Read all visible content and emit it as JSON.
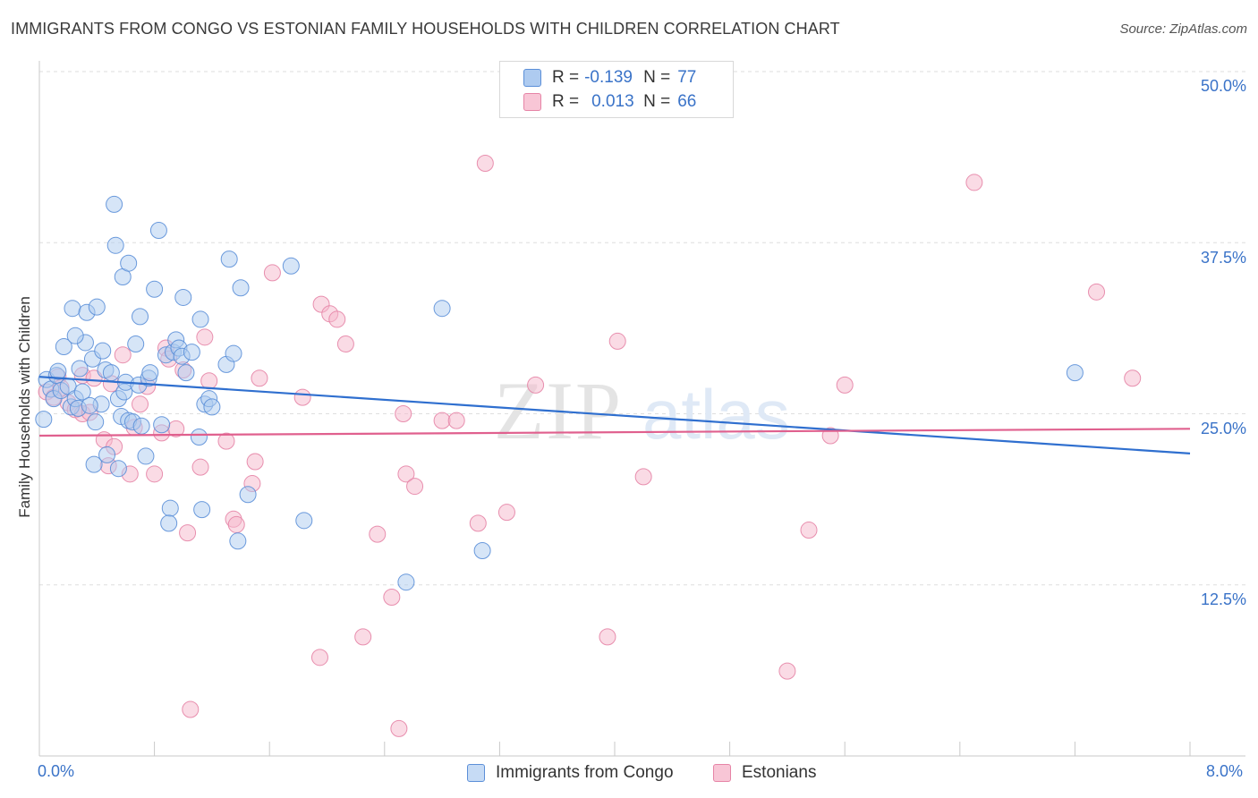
{
  "title": "IMMIGRANTS FROM CONGO VS ESTONIAN FAMILY HOUSEHOLDS WITH CHILDREN CORRELATION CHART",
  "source": "Source: ZipAtlas.com",
  "watermark": {
    "zip": "ZIP",
    "atlas": "atlas"
  },
  "colors": {
    "blue_fill": "#aecbf0",
    "blue_stroke": "#5b8fd8",
    "blue_line": "#2f6fcf",
    "pink_fill": "#f5b8cc",
    "pink_stroke": "#e684a6",
    "pink_line": "#e0608e",
    "accent_text": "#3a73c8",
    "grid": "#dedede"
  },
  "legend_top": {
    "rows": [
      {
        "label": "R =",
        "r": "-0.139",
        "n_label": "N =",
        "n": "77"
      },
      {
        "label": "R =",
        "r": "0.013",
        "n_label": "N =",
        "n": "66"
      }
    ]
  },
  "legend_bottom": [
    "Immigrants from Congo",
    "Estonians"
  ],
  "chart_data": {
    "type": "scatter",
    "title": "IMMIGRANTS FROM CONGO VS ESTONIAN FAMILY HOUSEHOLDS WITH CHILDREN CORRELATION CHART",
    "xlabel": "",
    "ylabel": "Family Households with Children",
    "xlim": [
      0,
      8
    ],
    "ylim": [
      0,
      50
    ],
    "x_tick_labels": [
      "0.0%",
      "8.0%"
    ],
    "y_ticks": [
      12.5,
      25.0,
      37.5,
      50.0
    ],
    "y_tick_labels": [
      "12.5%",
      "25.0%",
      "37.5%",
      "50.0%"
    ],
    "grid": true,
    "series": [
      {
        "name": "Immigrants from Congo",
        "r": -0.139,
        "n": 77,
        "trend": {
          "x": [
            0,
            8
          ],
          "y": [
            27.7,
            22.1
          ]
        },
        "points": [
          [
            0.03,
            24.6
          ],
          [
            0.05,
            27.5
          ],
          [
            0.08,
            26.8
          ],
          [
            0.1,
            26.1
          ],
          [
            0.12,
            27.8
          ],
          [
            0.13,
            28.1
          ],
          [
            0.15,
            26.7
          ],
          [
            0.17,
            29.9
          ],
          [
            0.2,
            27.0
          ],
          [
            0.22,
            25.5
          ],
          [
            0.23,
            32.7
          ],
          [
            0.25,
            26.1
          ],
          [
            0.27,
            25.4
          ],
          [
            0.28,
            28.3
          ],
          [
            0.3,
            26.6
          ],
          [
            0.32,
            30.2
          ],
          [
            0.33,
            32.4
          ],
          [
            0.37,
            29.0
          ],
          [
            0.38,
            21.3
          ],
          [
            0.39,
            24.4
          ],
          [
            0.4,
            32.8
          ],
          [
            0.43,
            25.7
          ],
          [
            0.44,
            29.6
          ],
          [
            0.46,
            28.2
          ],
          [
            0.47,
            22.0
          ],
          [
            0.5,
            28.0
          ],
          [
            0.52,
            40.3
          ],
          [
            0.53,
            37.3
          ],
          [
            0.55,
            26.1
          ],
          [
            0.57,
            24.8
          ],
          [
            0.59,
            26.6
          ],
          [
            0.6,
            27.3
          ],
          [
            0.62,
            24.5
          ],
          [
            0.65,
            24.4
          ],
          [
            0.67,
            30.1
          ],
          [
            0.69,
            27.1
          ],
          [
            0.7,
            32.1
          ],
          [
            0.71,
            24.1
          ],
          [
            0.74,
            21.9
          ],
          [
            0.76,
            27.6
          ],
          [
            0.77,
            28.0
          ],
          [
            0.8,
            34.1
          ],
          [
            0.83,
            38.4
          ],
          [
            0.85,
            24.2
          ],
          [
            0.88,
            29.3
          ],
          [
            0.91,
            18.1
          ],
          [
            0.93,
            29.5
          ],
          [
            0.95,
            30.4
          ],
          [
            0.97,
            29.8
          ],
          [
            0.99,
            29.2
          ],
          [
            1.0,
            33.5
          ],
          [
            1.02,
            28.0
          ],
          [
            1.06,
            29.5
          ],
          [
            1.11,
            23.3
          ],
          [
            1.13,
            18.0
          ],
          [
            1.15,
            25.7
          ],
          [
            1.18,
            26.1
          ],
          [
            1.2,
            25.5
          ],
          [
            1.32,
            36.3
          ],
          [
            1.3,
            28.6
          ],
          [
            1.38,
            15.7
          ],
          [
            1.4,
            34.2
          ],
          [
            1.45,
            19.1
          ],
          [
            1.75,
            35.8
          ],
          [
            1.84,
            17.2
          ],
          [
            2.55,
            12.7
          ],
          [
            2.8,
            32.7
          ],
          [
            3.08,
            15.0
          ],
          [
            7.2,
            28.0
          ],
          [
            0.35,
            25.6
          ],
          [
            0.58,
            35.0
          ],
          [
            0.62,
            36.0
          ],
          [
            1.12,
            31.9
          ],
          [
            1.35,
            29.4
          ],
          [
            0.25,
            30.7
          ],
          [
            0.9,
            17.0
          ],
          [
            0.55,
            21.0
          ]
        ]
      },
      {
        "name": "Estonians",
        "r": 0.013,
        "n": 66,
        "trend": {
          "x": [
            0,
            8
          ],
          "y": [
            23.4,
            23.9
          ]
        },
        "points": [
          [
            0.05,
            26.6
          ],
          [
            0.1,
            26.2
          ],
          [
            0.13,
            27.7
          ],
          [
            0.15,
            26.9
          ],
          [
            0.2,
            25.8
          ],
          [
            0.25,
            25.3
          ],
          [
            0.3,
            27.8
          ],
          [
            0.3,
            25.0
          ],
          [
            0.38,
            27.6
          ],
          [
            0.45,
            23.1
          ],
          [
            0.48,
            21.2
          ],
          [
            0.5,
            27.2
          ],
          [
            0.52,
            22.6
          ],
          [
            0.58,
            29.3
          ],
          [
            0.63,
            20.6
          ],
          [
            0.66,
            24.0
          ],
          [
            0.7,
            25.7
          ],
          [
            0.75,
            27.0
          ],
          [
            0.8,
            20.6
          ],
          [
            0.85,
            23.6
          ],
          [
            0.88,
            29.8
          ],
          [
            0.9,
            29.0
          ],
          [
            0.95,
            23.9
          ],
          [
            1.0,
            28.2
          ],
          [
            1.03,
            16.3
          ],
          [
            1.05,
            3.4
          ],
          [
            1.12,
            21.1
          ],
          [
            1.15,
            30.6
          ],
          [
            1.18,
            27.4
          ],
          [
            1.3,
            23.0
          ],
          [
            1.35,
            17.3
          ],
          [
            1.37,
            16.9
          ],
          [
            1.48,
            19.9
          ],
          [
            1.5,
            21.5
          ],
          [
            1.53,
            27.6
          ],
          [
            1.62,
            35.3
          ],
          [
            1.83,
            26.2
          ],
          [
            1.95,
            7.2
          ],
          [
            1.96,
            33.0
          ],
          [
            2.02,
            32.3
          ],
          [
            2.07,
            31.9
          ],
          [
            2.13,
            30.1
          ],
          [
            2.25,
            8.7
          ],
          [
            2.35,
            16.2
          ],
          [
            2.45,
            11.6
          ],
          [
            2.5,
            2.0
          ],
          [
            2.53,
            25.0
          ],
          [
            2.55,
            20.6
          ],
          [
            2.61,
            19.7
          ],
          [
            2.8,
            24.5
          ],
          [
            2.9,
            24.5
          ],
          [
            3.05,
            17.0
          ],
          [
            3.1,
            43.3
          ],
          [
            3.25,
            17.8
          ],
          [
            3.45,
            27.1
          ],
          [
            3.95,
            8.7
          ],
          [
            4.02,
            30.3
          ],
          [
            4.2,
            20.4
          ],
          [
            5.2,
            6.2
          ],
          [
            5.35,
            16.5
          ],
          [
            5.5,
            23.4
          ],
          [
            5.6,
            27.1
          ],
          [
            6.5,
            41.9
          ],
          [
            7.35,
            33.9
          ],
          [
            7.6,
            27.6
          ],
          [
            0.35,
            25.1
          ]
        ]
      }
    ]
  }
}
